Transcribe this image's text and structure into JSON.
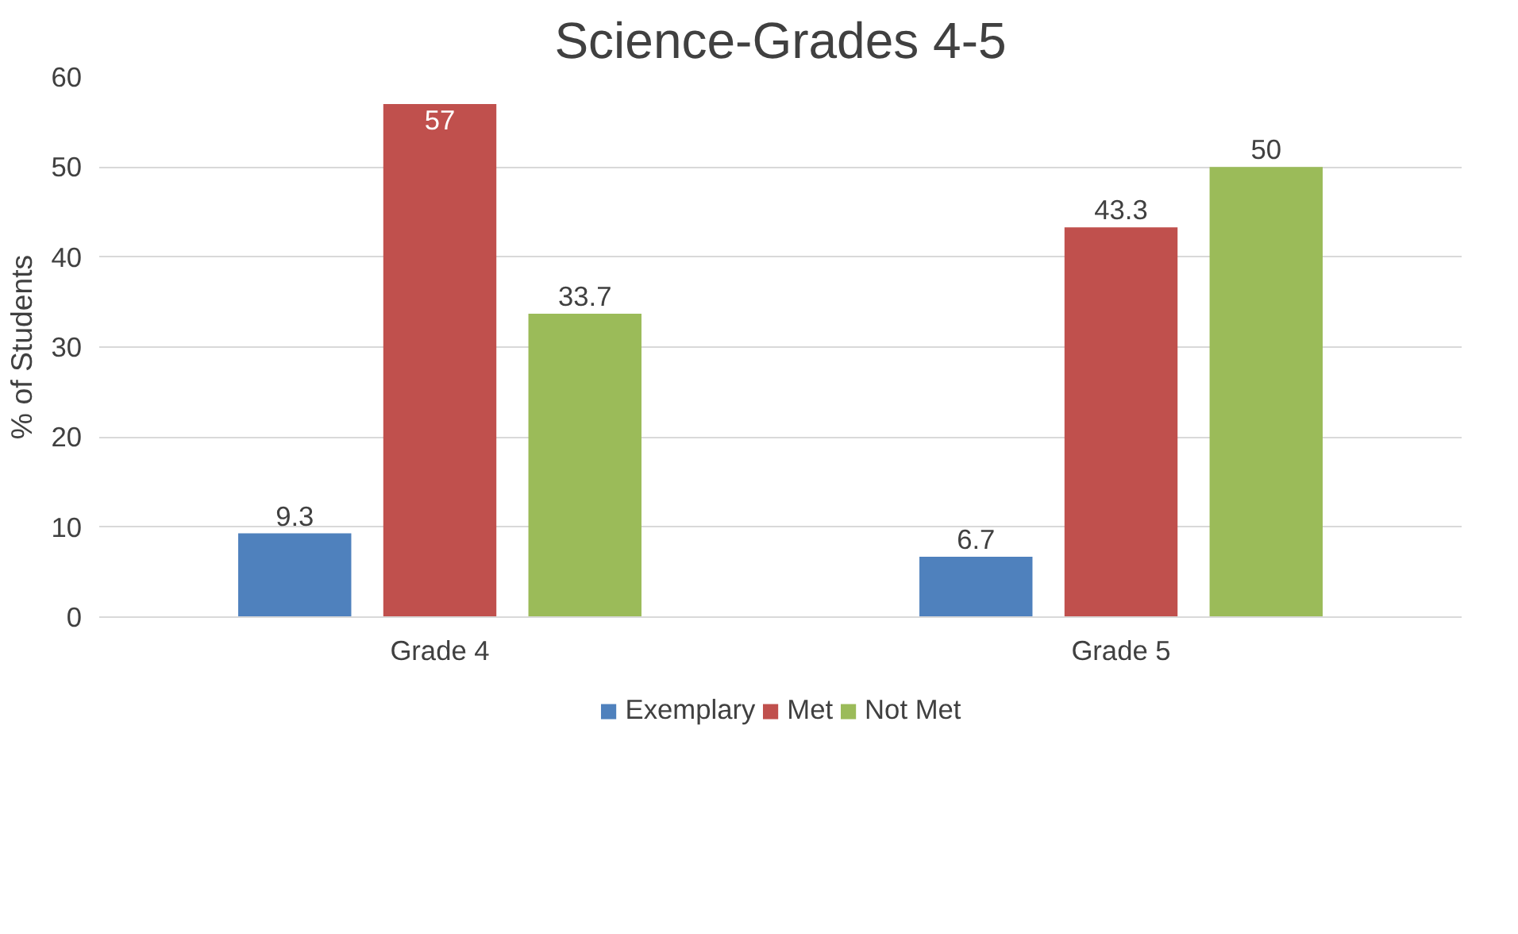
{
  "chart_data": {
    "type": "bar",
    "title": "Science-Grades 4-5",
    "ylabel": "% of Students",
    "categories": [
      "Grade 4",
      "Grade 5"
    ],
    "series": [
      {
        "name": "Exemplary",
        "color": "#4f81bd",
        "values": [
          9.3,
          6.7
        ]
      },
      {
        "name": "Met",
        "color": "#c0504d",
        "values": [
          57,
          43.3
        ]
      },
      {
        "name": "Not Met",
        "color": "#9bbb59",
        "values": [
          33.7,
          50
        ]
      }
    ],
    "ylim": [
      0,
      60
    ],
    "yticks": [
      0,
      10,
      20,
      30,
      40,
      50,
      60
    ],
    "grid": "y",
    "legend": "bottom",
    "data_labels": true
  }
}
